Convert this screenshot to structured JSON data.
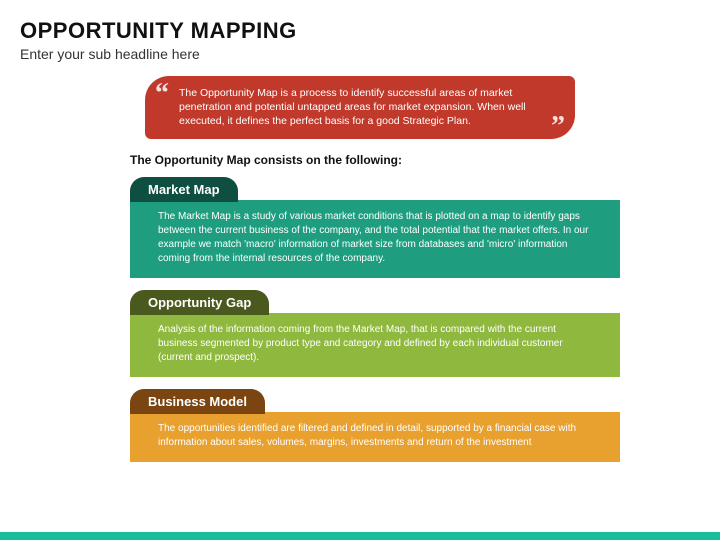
{
  "header": {
    "title": "OPPORTUNITY MAPPING",
    "subtitle": "Enter your sub headline here"
  },
  "quote": {
    "text": "The Opportunity Map is a process to identify successful areas of market penetration and potential untapped areas for market expansion. When well executed, it defines the perfect basis for a good Strategic Plan.",
    "bg_color": "#c0392b"
  },
  "consists_label": "The Opportunity Map consists on the following:",
  "sections": [
    {
      "tab_label": "Market Map",
      "tab_color": "#0e4f42",
      "body_color": "#1e9e7f",
      "body_text": "The Market Map is a study of various market conditions that is plotted on a map to identify gaps between the current business of the company, and the total potential that the market offers. In our example we match 'macro' information of market size from databases and 'micro' information coming from the internal resources of the company."
    },
    {
      "tab_label": "Opportunity Gap",
      "tab_color": "#4a5a1e",
      "body_color": "#8fb83e",
      "body_text": "Analysis of the information coming from the Market Map, that is compared with the current business segmented by product type and category and defined by each individual customer (current and prospect)."
    },
    {
      "tab_label": "Business Model",
      "tab_color": "#7a4510",
      "body_color": "#e8a02e",
      "body_text": "The opportunities identified are filtered and defined in detail, supported by a financial case with information about sales, volumes, margins, investments and return of the investment"
    }
  ],
  "bottom_bar_color": "#1abc9c"
}
